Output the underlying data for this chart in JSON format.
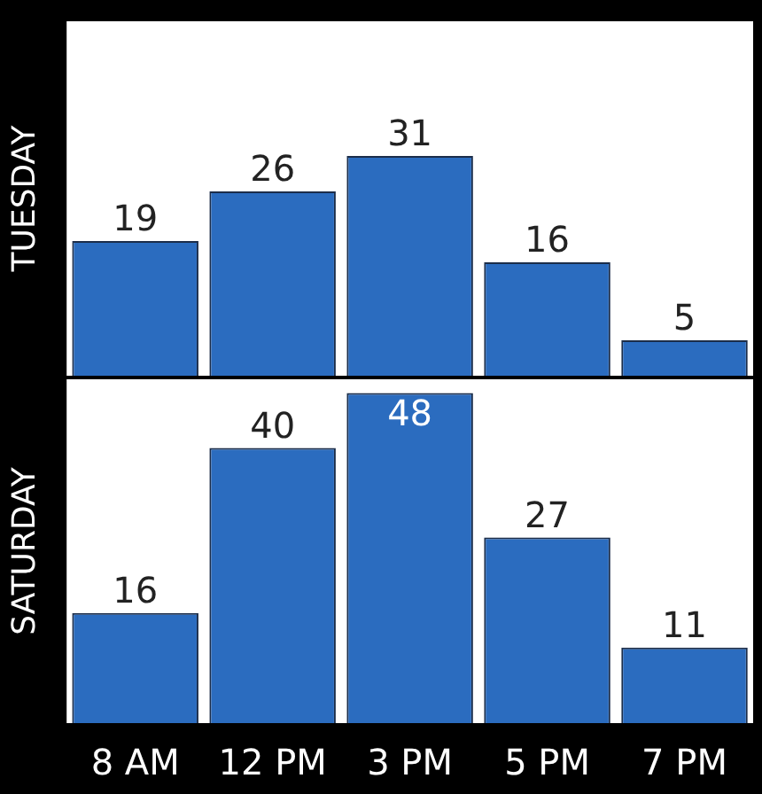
{
  "chart_data": [
    {
      "type": "bar",
      "ylabel": "TUESDAY",
      "categories": [
        null,
        null,
        null,
        null,
        null
      ],
      "values": [
        19,
        26,
        31,
        16,
        5
      ],
      "color": "#2b6cbf",
      "ylim": [
        0,
        50
      ],
      "data_labels": true,
      "tick_labels": false
    },
    {
      "type": "bar",
      "ylabel": "SATURDAY",
      "categories": [
        "8 AM",
        "12 PM",
        "3 PM",
        "5 PM",
        "7 PM"
      ],
      "values": [
        16,
        40,
        48,
        27,
        11
      ],
      "color": "#2b6cbf",
      "ylim": [
        0,
        50
      ],
      "data_labels": true,
      "tick_labels": "x"
    }
  ]
}
